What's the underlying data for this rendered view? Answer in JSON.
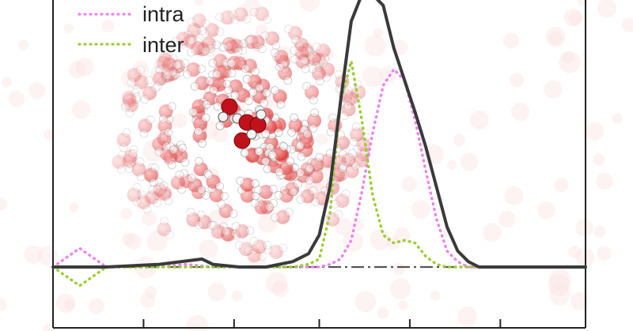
{
  "chart_data": {
    "type": "line",
    "title": "",
    "xlabel": "",
    "ylabel": "",
    "baseline_y": 0,
    "grid": false,
    "legend_position": "top-left",
    "legend": [
      {
        "label": "intra",
        "color": "#ee82ee",
        "style": "dotted"
      },
      {
        "label": "inter",
        "color": "#9acd32",
        "style": "dotted"
      }
    ],
    "series": [
      {
        "name": "",
        "color": "#3a3a3a",
        "style": "solid",
        "x": [
          0.0,
          0.1,
          0.2,
          0.28,
          0.3,
          0.35,
          0.4,
          0.45,
          0.48,
          0.5,
          0.52,
          0.54,
          0.56,
          0.58,
          0.6,
          0.62,
          0.64,
          0.66,
          0.68,
          0.7,
          0.72,
          0.74,
          0.76,
          0.78,
          0.8,
          0.82,
          0.84,
          0.86,
          0.88,
          0.9,
          0.92,
          0.94,
          1.0
        ],
        "y": [
          0.0,
          0.0,
          0.01,
          0.03,
          0.01,
          0.0,
          0.0,
          0.02,
          0.05,
          0.12,
          0.3,
          0.62,
          0.92,
          1.02,
          1.02,
          0.98,
          0.82,
          0.7,
          0.58,
          0.45,
          0.3,
          0.15,
          0.06,
          0.02,
          0.0,
          0.0,
          0.0,
          0.0,
          0.0,
          0.0,
          0.0,
          0.0,
          0.0
        ]
      },
      {
        "name": "intra",
        "color": "#ee82ee",
        "style": "dotted",
        "x": [
          0.0,
          0.05,
          0.1,
          0.15,
          0.2,
          0.25,
          0.3,
          0.35,
          0.4,
          0.45,
          0.5,
          0.52,
          0.54,
          0.56,
          0.58,
          0.6,
          0.62,
          0.64,
          0.66,
          0.68,
          0.7,
          0.72,
          0.74,
          0.76,
          0.78,
          0.8,
          1.0
        ],
        "y": [
          0.0,
          0.07,
          0.0,
          0.0,
          0.0,
          0.01,
          0.0,
          0.0,
          0.0,
          0.0,
          0.0,
          0.01,
          0.03,
          0.1,
          0.28,
          0.5,
          0.68,
          0.74,
          0.7,
          0.55,
          0.36,
          0.18,
          0.06,
          0.02,
          0.0,
          0.0,
          0.0
        ]
      },
      {
        "name": "inter",
        "color": "#9acd32",
        "style": "dotted",
        "x": [
          0.0,
          0.05,
          0.1,
          0.15,
          0.2,
          0.25,
          0.3,
          0.35,
          0.4,
          0.45,
          0.48,
          0.5,
          0.52,
          0.54,
          0.56,
          0.58,
          0.6,
          0.62,
          0.64,
          0.66,
          0.68,
          0.7,
          0.72,
          0.74,
          0.76,
          1.0
        ],
        "y": [
          0.0,
          -0.07,
          0.0,
          0.0,
          0.0,
          0.0,
          0.0,
          0.0,
          0.0,
          0.0,
          0.01,
          0.03,
          0.2,
          0.62,
          0.77,
          0.55,
          0.27,
          0.12,
          0.09,
          0.1,
          0.09,
          0.04,
          0.01,
          0.0,
          0.0,
          0.0
        ]
      }
    ],
    "xlim": [
      0,
      1
    ],
    "ylim": [
      -0.12,
      1.02
    ],
    "x_ticks": [
      0.17,
      0.34,
      0.5,
      0.67,
      0.84
    ]
  }
}
